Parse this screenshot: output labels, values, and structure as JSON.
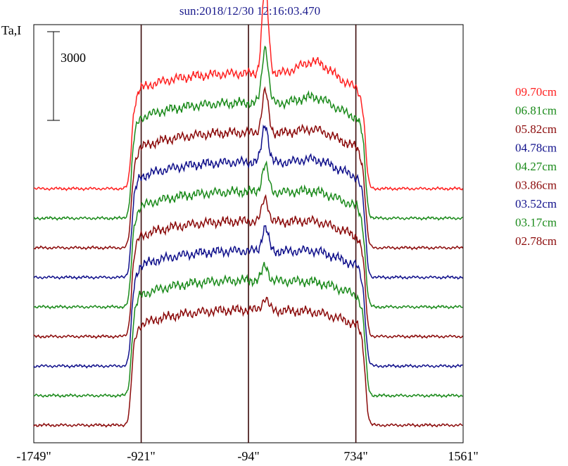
{
  "chart_data": {
    "type": "line",
    "title": "sun:2018/12/30 12:16:03.470",
    "ylabel": "Ta,I",
    "scale_bar_label": "3000",
    "scale_bar_value": 3000,
    "xlim": [
      -1749,
      1561
    ],
    "x_ticks": [
      -1749,
      -921,
      -94,
      734,
      1561
    ],
    "x_tick_labels": [
      "-1749\"",
      "-921\"",
      "-94\"",
      "734\"",
      "1561\""
    ],
    "vertical_lines": [
      -921,
      -94,
      734
    ],
    "legend_position": "right",
    "series": [
      {
        "name": "09.70cm",
        "color": "#ff2020",
        "offset": 8000,
        "peak": 3000
      },
      {
        "name": "06.81cm",
        "color": "#1a8a1a",
        "offset": 7000,
        "peak": 1900
      },
      {
        "name": "05.82cm",
        "color": "#8b0a0a",
        "offset": 6000,
        "peak": 1400
      },
      {
        "name": "04.78cm",
        "color": "#10108b",
        "offset": 5000,
        "peak": 1300
      },
      {
        "name": "04.27cm",
        "color": "#1a8a1a",
        "offset": 4000,
        "peak": 900
      },
      {
        "name": "03.86cm",
        "color": "#8b0a0a",
        "offset": 3000,
        "peak": 800
      },
      {
        "name": "03.52cm",
        "color": "#10108b",
        "offset": 2000,
        "peak": 800
      },
      {
        "name": "03.17cm",
        "color": "#1a8a1a",
        "offset": 1000,
        "peak": 500
      },
      {
        "name": "02.78cm",
        "color": "#8b0a0a",
        "offset": 0,
        "peak": 400
      }
    ]
  }
}
